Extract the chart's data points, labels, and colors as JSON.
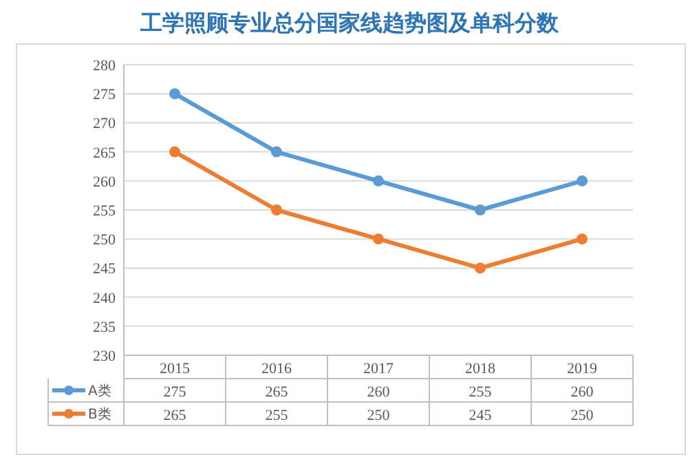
{
  "chart_data": {
    "type": "line",
    "title": "工学照顾专业总分国家线趋势图及单科分数",
    "categories": [
      "2015",
      "2016",
      "2017",
      "2018",
      "2019"
    ],
    "series": [
      {
        "name": "A类",
        "color": "#5b9bd5",
        "values": [
          275,
          265,
          260,
          255,
          260
        ]
      },
      {
        "name": "B类",
        "color": "#ed7d31",
        "values": [
          265,
          255,
          250,
          245,
          250
        ]
      }
    ],
    "ylim": [
      230,
      280
    ],
    "yticks": [
      230,
      235,
      240,
      245,
      250,
      255,
      260,
      265,
      270,
      275,
      280
    ],
    "grid": "y",
    "legend": "bottom",
    "data_labels": true,
    "marker": "circle",
    "line_style": "solid"
  }
}
